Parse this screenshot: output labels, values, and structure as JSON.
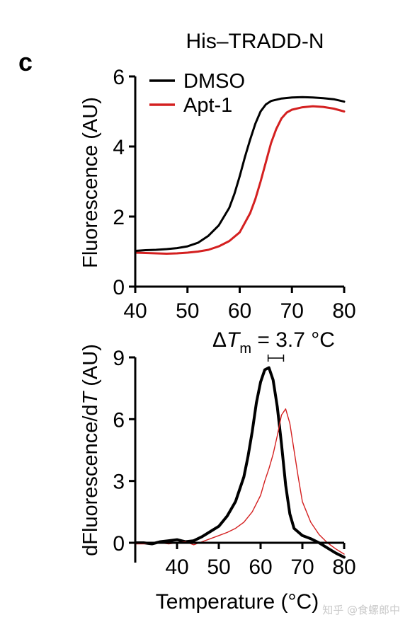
{
  "panel_label": "c",
  "watermark": "知乎 @食螺郎中",
  "colors": {
    "dmso": "#000000",
    "apt1": "#d42020"
  },
  "chart_data": [
    {
      "type": "line",
      "title": "His–TRADD-N",
      "xlabel": "",
      "ylabel": "Fluorescence (AU)",
      "xlim": [
        40,
        80
      ],
      "ylim": [
        0,
        6
      ],
      "xticks": [
        "40",
        "50",
        "60",
        "70",
        "80"
      ],
      "yticks": [
        "0",
        "2",
        "4",
        "6"
      ],
      "grid": false,
      "legend": "top-left",
      "series": [
        {
          "name": "DMSO",
          "color": "#000000",
          "x": [
            40,
            42,
            44,
            46,
            48,
            50,
            52,
            54,
            56,
            58,
            59,
            60,
            61,
            62,
            63,
            64,
            65,
            66,
            68,
            70,
            72,
            74,
            76,
            78,
            80
          ],
          "y": [
            1.02,
            1.04,
            1.05,
            1.07,
            1.1,
            1.15,
            1.25,
            1.45,
            1.75,
            2.25,
            2.65,
            3.15,
            3.7,
            4.2,
            4.65,
            5.0,
            5.2,
            5.3,
            5.37,
            5.4,
            5.41,
            5.4,
            5.38,
            5.35,
            5.28
          ]
        },
        {
          "name": "Apt-1",
          "color": "#d42020",
          "x": [
            40,
            42,
            44,
            46,
            48,
            50,
            52,
            54,
            56,
            58,
            60,
            62,
            63,
            64,
            65,
            66,
            67,
            68,
            69,
            70,
            72,
            74,
            76,
            78,
            80
          ],
          "y": [
            0.97,
            0.96,
            0.95,
            0.94,
            0.95,
            0.97,
            1.0,
            1.05,
            1.15,
            1.3,
            1.55,
            2.1,
            2.5,
            3.0,
            3.55,
            4.1,
            4.5,
            4.8,
            4.97,
            5.05,
            5.12,
            5.15,
            5.13,
            5.08,
            5.0
          ]
        }
      ]
    },
    {
      "type": "line",
      "title": "",
      "annotation_prefix": "Δ",
      "annotation_T": "T",
      "annotation_sub": "m",
      "annotation_value": " = 3.7 °C",
      "tm_values": [
        61.8,
        65.5
      ],
      "xlabel": "Temperature (°C)",
      "ylabel_prefix": "dFluorescence/d",
      "ylabel_T": "T",
      "ylabel_suffix": " (AU)",
      "xlim": [
        30,
        80
      ],
      "ylim": [
        0,
        9
      ],
      "xticks": [
        "40",
        "50",
        "60",
        "70",
        "80"
      ],
      "yticks": [
        "0",
        "3",
        "6",
        "9"
      ],
      "grid": false,
      "series": [
        {
          "name": "DMSO",
          "color": "#000000",
          "x": [
            30,
            32,
            34,
            36,
            38,
            40,
            42,
            44,
            46,
            48,
            50,
            52,
            54,
            56,
            57,
            58,
            59,
            60,
            61,
            62,
            63,
            64,
            65,
            66,
            67,
            68,
            70,
            72,
            74,
            76,
            78,
            80
          ],
          "y": [
            0.0,
            0.0,
            -0.05,
            0.05,
            0.1,
            0.15,
            0.05,
            0.1,
            0.3,
            0.55,
            0.8,
            1.3,
            2.0,
            3.2,
            4.2,
            5.4,
            6.8,
            7.8,
            8.4,
            8.5,
            7.9,
            6.6,
            4.8,
            2.8,
            1.4,
            0.7,
            0.35,
            0.2,
            0.0,
            -0.25,
            -0.5,
            -0.7
          ]
        },
        {
          "name": "Apt-1",
          "color": "#d42020",
          "x": [
            30,
            32,
            34,
            36,
            38,
            40,
            42,
            44,
            46,
            48,
            50,
            52,
            54,
            56,
            58,
            60,
            61,
            62,
            63,
            64,
            65,
            66,
            67,
            68,
            69,
            70,
            72,
            74,
            76,
            78,
            80
          ],
          "y": [
            -0.05,
            -0.05,
            0.0,
            0.0,
            -0.05,
            0.0,
            0.05,
            -0.1,
            0.05,
            0.2,
            0.35,
            0.5,
            0.7,
            1.0,
            1.5,
            2.3,
            3.0,
            3.6,
            4.3,
            5.2,
            6.2,
            6.5,
            5.8,
            4.5,
            3.2,
            2.0,
            1.0,
            0.4,
            0.0,
            -0.3,
            -0.55
          ]
        }
      ]
    }
  ]
}
